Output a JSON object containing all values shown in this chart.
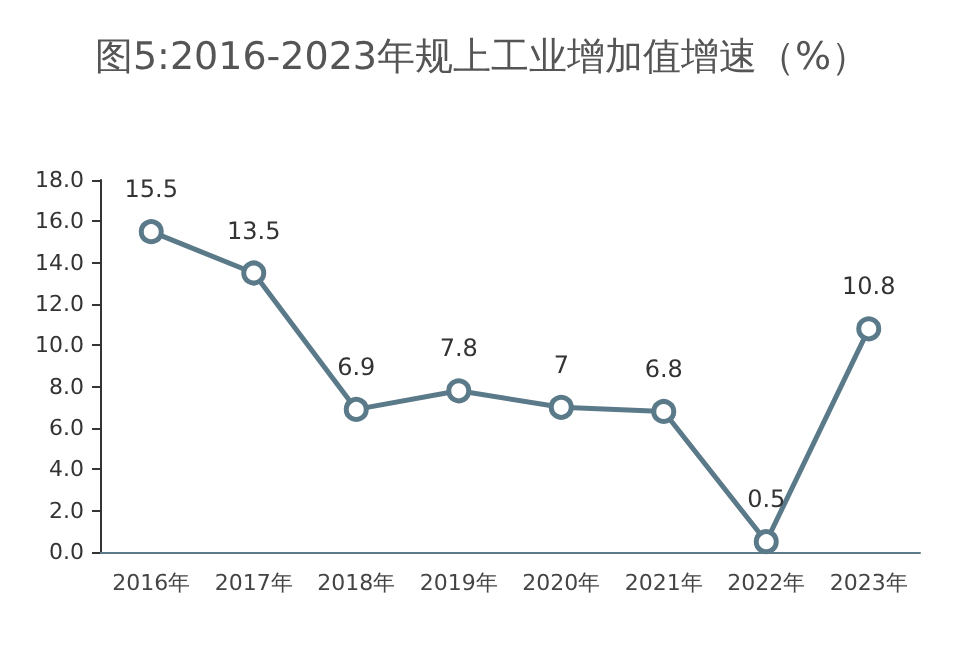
{
  "chart_data": {
    "type": "line",
    "title": "图5:2016-2023年规上工业增加值增速（%）",
    "categories": [
      "2016年",
      "2017年",
      "2018年",
      "2019年",
      "2020年",
      "2021年",
      "2022年",
      "2023年"
    ],
    "series": [
      {
        "color": "#5b7a89",
        "values": [
          15.5,
          13.5,
          6.9,
          7.8,
          7,
          6.8,
          0.5,
          10.8
        ]
      }
    ],
    "ylim": [
      0,
      18
    ],
    "yticks": [
      {
        "value": 0,
        "label": "0.0"
      },
      {
        "value": 2,
        "label": "2.0"
      },
      {
        "value": 4,
        "label": "4.0"
      },
      {
        "value": 6,
        "label": "6.0"
      },
      {
        "value": 8,
        "label": "8.0"
      },
      {
        "value": 10,
        "label": "10.0"
      },
      {
        "value": 12,
        "label": "12.0"
      },
      {
        "value": 14,
        "label": "14.0"
      },
      {
        "value": 16,
        "label": "16.0"
      },
      {
        "value": 18,
        "label": "18.0"
      }
    ],
    "data_labels": true,
    "grid": false,
    "marker": "circle",
    "line_style": "solid"
  }
}
